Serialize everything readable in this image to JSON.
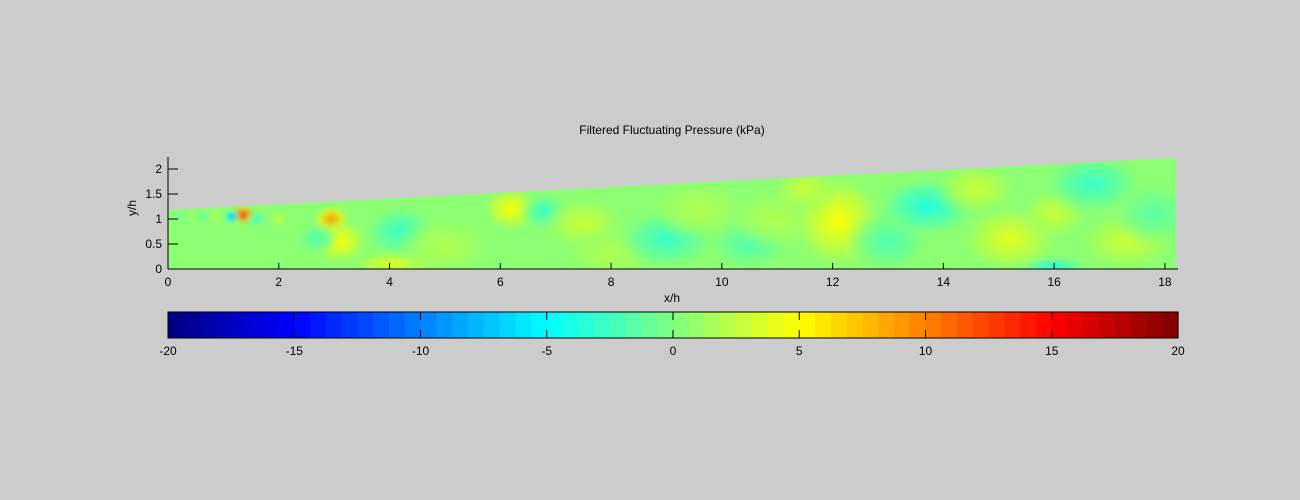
{
  "chart_data": {
    "type": "heatmap",
    "title": "Filtered Fluctuating Pressure (kPa)",
    "xlabel": "x/h",
    "ylabel": "y/h",
    "xlim": [
      0,
      18.2
    ],
    "ylim": [
      0,
      2.2
    ],
    "x_ticks": [
      "0",
      "2",
      "4",
      "6",
      "8",
      "10",
      "12",
      "14",
      "16",
      "18"
    ],
    "y_ticks": [
      "0",
      "0.5",
      "1",
      "1.5",
      "2"
    ],
    "domain_upper_wall": {
      "x": [
        0,
        18.2
      ],
      "y": [
        1.18,
        2.22
      ]
    },
    "colorbar": {
      "colormap": "jet",
      "range": [
        -20,
        20
      ],
      "ticks": [
        "-20",
        "-15",
        "-10",
        "-5",
        "0",
        "5",
        "10",
        "15",
        "20"
      ]
    },
    "field_features": [
      {
        "x": 1.35,
        "y": 1.08,
        "value": 14,
        "rx": 0.18,
        "ry": 0.13
      },
      {
        "x": 1.15,
        "y": 1.05,
        "value": -9,
        "rx": 0.1,
        "ry": 0.09
      },
      {
        "x": 0.85,
        "y": 1.05,
        "value": 3,
        "rx": 0.07,
        "ry": 0.07
      },
      {
        "x": 0.62,
        "y": 1.05,
        "value": -3,
        "rx": 0.06,
        "ry": 0.06
      },
      {
        "x": 0.42,
        "y": 1.05,
        "value": 2,
        "rx": 0.06,
        "ry": 0.06
      },
      {
        "x": 0.22,
        "y": 1.05,
        "value": -2,
        "rx": 0.06,
        "ry": 0.06
      },
      {
        "x": 1.6,
        "y": 1.0,
        "value": -3,
        "rx": 0.12,
        "ry": 0.1
      },
      {
        "x": 2.0,
        "y": 1.0,
        "value": 3,
        "rx": 0.12,
        "ry": 0.1
      },
      {
        "x": 2.95,
        "y": 0.98,
        "value": 10,
        "rx": 0.22,
        "ry": 0.2
      },
      {
        "x": 3.1,
        "y": 0.55,
        "value": 5,
        "rx": 0.35,
        "ry": 0.3
      },
      {
        "x": 2.7,
        "y": 0.6,
        "value": -2,
        "rx": 0.25,
        "ry": 0.2
      },
      {
        "x": 4.1,
        "y": 0.1,
        "value": 4,
        "rx": 0.55,
        "ry": 0.18
      },
      {
        "x": 4.2,
        "y": 0.75,
        "value": -3,
        "rx": 0.45,
        "ry": 0.35
      },
      {
        "x": 5.0,
        "y": 0.45,
        "value": 2,
        "rx": 0.6,
        "ry": 0.4
      },
      {
        "x": 6.2,
        "y": 1.2,
        "value": 5,
        "rx": 0.35,
        "ry": 0.3
      },
      {
        "x": 6.8,
        "y": 1.15,
        "value": -3,
        "rx": 0.3,
        "ry": 0.25
      },
      {
        "x": 7.5,
        "y": 0.9,
        "value": 3,
        "rx": 0.5,
        "ry": 0.35
      },
      {
        "x": 8.0,
        "y": 0.3,
        "value": 2,
        "rx": 0.6,
        "ry": 0.35
      },
      {
        "x": 9.0,
        "y": 0.6,
        "value": -3,
        "rx": 0.6,
        "ry": 0.4
      },
      {
        "x": 9.6,
        "y": 1.2,
        "value": 2,
        "rx": 0.6,
        "ry": 0.4
      },
      {
        "x": 10.5,
        "y": 0.5,
        "value": -2,
        "rx": 0.5,
        "ry": 0.35
      },
      {
        "x": 11.0,
        "y": 1.0,
        "value": 2,
        "rx": 0.6,
        "ry": 0.4
      },
      {
        "x": 12.1,
        "y": 0.95,
        "value": 5,
        "rx": 0.55,
        "ry": 0.65
      },
      {
        "x": 11.5,
        "y": 1.6,
        "value": 3,
        "rx": 0.4,
        "ry": 0.3
      },
      {
        "x": 13.0,
        "y": 0.55,
        "value": -2,
        "rx": 0.5,
        "ry": 0.4
      },
      {
        "x": 13.7,
        "y": 1.25,
        "value": -4,
        "rx": 0.6,
        "ry": 0.4
      },
      {
        "x": 14.6,
        "y": 1.6,
        "value": 3,
        "rx": 0.5,
        "ry": 0.35
      },
      {
        "x": 15.2,
        "y": 0.6,
        "value": 4,
        "rx": 0.6,
        "ry": 0.45
      },
      {
        "x": 16.0,
        "y": 1.1,
        "value": 3,
        "rx": 0.4,
        "ry": 0.35
      },
      {
        "x": 16.7,
        "y": 1.7,
        "value": -3,
        "rx": 0.6,
        "ry": 0.4
      },
      {
        "x": 17.3,
        "y": 0.55,
        "value": 3,
        "rx": 0.6,
        "ry": 0.4
      },
      {
        "x": 16.0,
        "y": 0.05,
        "value": -4,
        "rx": 0.4,
        "ry": 0.12
      },
      {
        "x": 17.8,
        "y": 1.1,
        "value": -1.5,
        "rx": 0.5,
        "ry": 0.4
      }
    ]
  }
}
